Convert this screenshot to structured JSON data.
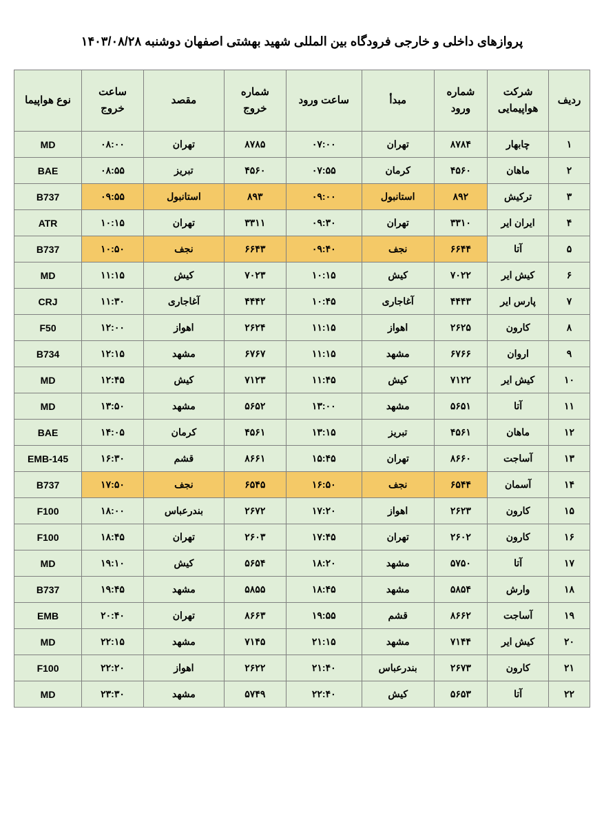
{
  "title": "پروازهای داخلی و خارجی فرودگاه بین المللی شهید بهشتی اصفهان دوشنبه ۱۴۰۳/۰۸/۲۸",
  "table": {
    "columns": [
      "ردیف",
      "شرکت هواپیمایی",
      "شماره ورود",
      "مبدأ",
      "ساعت ورود",
      "شماره خروج",
      "مقصد",
      "ساعت خروج",
      "نوع هواپیما"
    ],
    "header_bg": "#e0eed8",
    "cell_bg": "#e0eed8",
    "highlight_bg": "#f4c967",
    "border_color": "#808080",
    "rows": [
      {
        "n": "۱",
        "airline": "چابهار",
        "arrno": "۸۷۸۴",
        "origin": "تهران",
        "arrtime": "۰۷:۰۰",
        "depno": "۸۷۸۵",
        "dest": "تهران",
        "deptime": "۰۸:۰۰",
        "aircraft": "MD",
        "hl": false
      },
      {
        "n": "۲",
        "airline": "ماهان",
        "arrno": "۴۵۶۰",
        "origin": "کرمان",
        "arrtime": "۰۷:۵۵",
        "depno": "۴۵۶۰",
        "dest": "تبریز",
        "deptime": "۰۸:۵۵",
        "aircraft": "BAE",
        "hl": false
      },
      {
        "n": "۳",
        "airline": "ترکیش",
        "arrno": "۸۹۲",
        "origin": "استانبول",
        "arrtime": "۰۹:۰۰",
        "depno": "۸۹۳",
        "dest": "استانبول",
        "deptime": "۰۹:۵۵",
        "aircraft": "B737",
        "hl": true
      },
      {
        "n": "۴",
        "airline": "ایران ایر",
        "arrno": "۳۳۱۰",
        "origin": "تهران",
        "arrtime": "۰۹:۳۰",
        "depno": "۳۳۱۱",
        "dest": "تهران",
        "deptime": "۱۰:۱۵",
        "aircraft": "ATR",
        "hl": false
      },
      {
        "n": "۵",
        "airline": "آتا",
        "arrno": "۶۶۴۴",
        "origin": "نجف",
        "arrtime": "۰۹:۴۰",
        "depno": "۶۶۴۳",
        "dest": "نجف",
        "deptime": "۱۰:۵۰",
        "aircraft": "B737",
        "hl": true
      },
      {
        "n": "۶",
        "airline": "کیش ایر",
        "arrno": "۷۰۲۲",
        "origin": "کیش",
        "arrtime": "۱۰:۱۵",
        "depno": "۷۰۲۳",
        "dest": "کیش",
        "deptime": "۱۱:۱۵",
        "aircraft": "MD",
        "hl": false
      },
      {
        "n": "۷",
        "airline": "پارس ایر",
        "arrno": "۴۴۴۳",
        "origin": "آغاجاری",
        "arrtime": "۱۰:۴۵",
        "depno": "۴۴۴۲",
        "dest": "آغاجاری",
        "deptime": "۱۱:۳۰",
        "aircraft": "CRJ",
        "hl": false
      },
      {
        "n": "۸",
        "airline": "کارون",
        "arrno": "۲۶۲۵",
        "origin": "اهواز",
        "arrtime": "۱۱:۱۵",
        "depno": "۲۶۲۴",
        "dest": "اهواز",
        "deptime": "۱۲:۰۰",
        "aircraft": "F50",
        "hl": false
      },
      {
        "n": "۹",
        "airline": "اروان",
        "arrno": "۶۷۶۶",
        "origin": "مشهد",
        "arrtime": "۱۱:۱۵",
        "depno": "۶۷۶۷",
        "dest": "مشهد",
        "deptime": "۱۲:۱۵",
        "aircraft": "B734",
        "hl": false
      },
      {
        "n": "۱۰",
        "airline": "کیش ایر",
        "arrno": "۷۱۲۲",
        "origin": "کیش",
        "arrtime": "۱۱:۴۵",
        "depno": "۷۱۲۳",
        "dest": "کیش",
        "deptime": "۱۲:۴۵",
        "aircraft": "MD",
        "hl": false
      },
      {
        "n": "۱۱",
        "airline": "آتا",
        "arrno": "۵۶۵۱",
        "origin": "مشهد",
        "arrtime": "۱۳:۰۰",
        "depno": "۵۶۵۲",
        "dest": "مشهد",
        "deptime": "۱۳:۵۰",
        "aircraft": "MD",
        "hl": false
      },
      {
        "n": "۱۲",
        "airline": "ماهان",
        "arrno": "۴۵۶۱",
        "origin": "تبریز",
        "arrtime": "۱۳:۱۵",
        "depno": "۴۵۶۱",
        "dest": "کرمان",
        "deptime": "۱۴:۰۵",
        "aircraft": "BAE",
        "hl": false
      },
      {
        "n": "۱۳",
        "airline": "آساجت",
        "arrno": "۸۶۶۰",
        "origin": "تهران",
        "arrtime": "۱۵:۴۵",
        "depno": "۸۶۶۱",
        "dest": "قشم",
        "deptime": "۱۶:۳۰",
        "aircraft": "EMB-145",
        "hl": false
      },
      {
        "n": "۱۴",
        "airline": "آسمان",
        "arrno": "۶۵۴۴",
        "origin": "نجف",
        "arrtime": "۱۶:۵۰",
        "depno": "۶۵۴۵",
        "dest": "نجف",
        "deptime": "۱۷:۵۰",
        "aircraft": "B737",
        "hl": true
      },
      {
        "n": "۱۵",
        "airline": "کارون",
        "arrno": "۲۶۲۳",
        "origin": "اهواز",
        "arrtime": "۱۷:۲۰",
        "depno": "۲۶۷۲",
        "dest": "بندرعباس",
        "deptime": "۱۸:۰۰",
        "aircraft": "F100",
        "hl": false
      },
      {
        "n": "۱۶",
        "airline": "کارون",
        "arrno": "۲۶۰۲",
        "origin": "تهران",
        "arrtime": "۱۷:۴۵",
        "depno": "۲۶۰۳",
        "dest": "تهران",
        "deptime": "۱۸:۴۵",
        "aircraft": "F100",
        "hl": false
      },
      {
        "n": "۱۷",
        "airline": "آتا",
        "arrno": "۵۷۵۰",
        "origin": "مشهد",
        "arrtime": "۱۸:۲۰",
        "depno": "۵۶۵۴",
        "dest": "کیش",
        "deptime": "۱۹:۱۰",
        "aircraft": "MD",
        "hl": false
      },
      {
        "n": "۱۸",
        "airline": "وارش",
        "arrno": "۵۸۵۴",
        "origin": "مشهد",
        "arrtime": "۱۸:۴۵",
        "depno": "۵۸۵۵",
        "dest": "مشهد",
        "deptime": "۱۹:۴۵",
        "aircraft": "B737",
        "hl": false
      },
      {
        "n": "۱۹",
        "airline": "آساجت",
        "arrno": "۸۶۶۲",
        "origin": "قشم",
        "arrtime": "۱۹:۵۵",
        "depno": "۸۶۶۳",
        "dest": "تهران",
        "deptime": "۲۰:۴۰",
        "aircraft": "EMB",
        "hl": false
      },
      {
        "n": "۲۰",
        "airline": "کیش ایر",
        "arrno": "۷۱۴۴",
        "origin": "مشهد",
        "arrtime": "۲۱:۱۵",
        "depno": "۷۱۴۵",
        "dest": "مشهد",
        "deptime": "۲۲:۱۵",
        "aircraft": "MD",
        "hl": false
      },
      {
        "n": "۲۱",
        "airline": "کارون",
        "arrno": "۲۶۷۳",
        "origin": "بندرعباس",
        "arrtime": "۲۱:۴۰",
        "depno": "۲۶۲۲",
        "dest": "اهواز",
        "deptime": "۲۲:۲۰",
        "aircraft": "F100",
        "hl": false
      },
      {
        "n": "۲۲",
        "airline": "آتا",
        "arrno": "۵۶۵۳",
        "origin": "کیش",
        "arrtime": "۲۲:۴۰",
        "depno": "۵۷۴۹",
        "dest": "مشهد",
        "deptime": "۲۳:۳۰",
        "aircraft": "MD",
        "hl": false
      }
    ]
  }
}
